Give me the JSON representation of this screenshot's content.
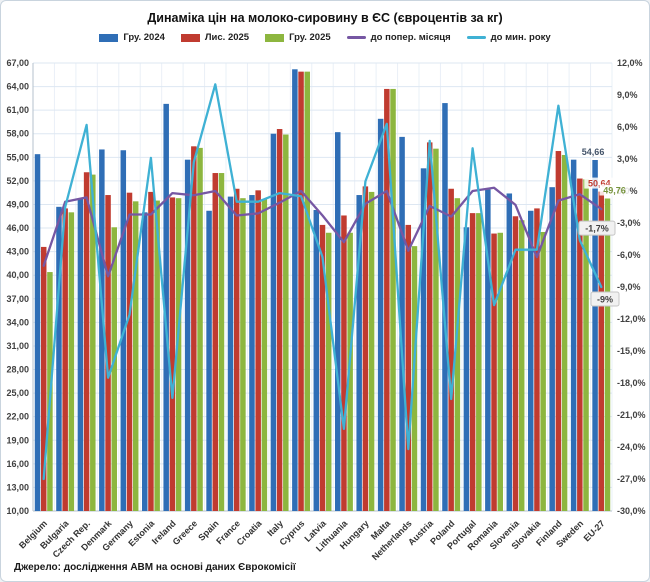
{
  "title": "Динаміка цін на молоко-сировину в ЄС (євроцентів за кг)",
  "source": "Джерело: дослідження АВМ на основі даних Єврокомісії",
  "colors": {
    "bar_dec2024": "#2F6EB6",
    "bar_nov2025": "#C03B30",
    "bar_dec2025": "#8DB63F",
    "line_month": "#7657A3",
    "line_year": "#3FB1D4",
    "axis_text": "#404040",
    "gridline": "#dde7f2",
    "gridline_vertical": "#eaf0f7",
    "axis_line": "#b5c2cd",
    "label_box_bg": "#f1f1f1",
    "label_box_border": "#c5c5c5"
  },
  "chart_data": {
    "type": "combo-bar-line",
    "title": "Динаміка цін на молоко-сировину в ЄС (євроцентів за кг)",
    "categories": [
      "Belgium",
      "Bulgaria",
      "Czech Rep.",
      "Denmark",
      "Germany",
      "Estonia",
      "Ireland",
      "Greece",
      "Spain",
      "France",
      "Croatia",
      "Italy",
      "Cyprus",
      "Latvia",
      "Lithuania",
      "Hungary",
      "Malta",
      "Netherlands",
      "Austria",
      "Poland",
      "Portugal",
      "Romania",
      "Slovenia",
      "Slovakia",
      "Finland",
      "Sweden",
      "EU-27"
    ],
    "series": [
      {
        "name": "Гру. 2024",
        "type": "bar",
        "axis": "left",
        "color": "#2F6EB6",
        "values": [
          55.4,
          48.7,
          49.7,
          56.0,
          55.9,
          48.0,
          61.8,
          54.7,
          48.2,
          50.0,
          50.2,
          58.0,
          66.2,
          48.3,
          58.2,
          50.2,
          59.9,
          57.6,
          53.6,
          61.9,
          46.1,
          50.9,
          50.4,
          48.2,
          51.2,
          54.7,
          54.66
        ]
      },
      {
        "name": "Лис. 2025",
        "type": "bar",
        "axis": "left",
        "color": "#C03B30",
        "values": [
          43.6,
          48.5,
          53.1,
          50.2,
          50.5,
          50.6,
          49.9,
          56.4,
          53.0,
          51.0,
          50.8,
          58.6,
          65.9,
          46.4,
          47.6,
          51.3,
          63.7,
          46.4,
          56.9,
          51.0,
          47.9,
          45.3,
          47.5,
          48.5,
          55.8,
          52.3,
          50.64
        ]
      },
      {
        "name": "Гру. 2025",
        "type": "bar",
        "axis": "left",
        "color": "#8DB63F",
        "values": [
          40.4,
          48.0,
          52.8,
          46.1,
          49.4,
          49.5,
          49.8,
          56.2,
          53.0,
          49.8,
          49.7,
          57.9,
          65.9,
          45.4,
          45.4,
          50.6,
          63.7,
          43.7,
          56.1,
          49.8,
          47.9,
          45.4,
          47.0,
          45.5,
          55.3,
          52.2,
          49.76
        ]
      },
      {
        "name": "до попер. місяця",
        "type": "line",
        "axis": "right",
        "color": "#7657A3",
        "values": [
          -7.0,
          -1.0,
          -0.6,
          -8.0,
          -2.2,
          -2.2,
          -0.2,
          -0.4,
          0.0,
          -2.3,
          -2.1,
          -1.1,
          0.0,
          -2.3,
          -4.8,
          -1.2,
          0.0,
          -5.6,
          -1.4,
          -2.4,
          0.0,
          0.3,
          -1.3,
          -6.2,
          -0.9,
          -0.3,
          -1.7
        ]
      },
      {
        "name": "до мин. року",
        "type": "line",
        "axis": "right",
        "color": "#3FB1D4",
        "values": [
          -27.0,
          -1.5,
          6.2,
          -17.5,
          -11.6,
          3.1,
          -19.4,
          2.7,
          10.0,
          -1.0,
          -1.0,
          -0.2,
          -0.5,
          -6.2,
          -22.3,
          0.9,
          6.3,
          -24.2,
          4.7,
          -19.5,
          4.0,
          -10.7,
          -5.5,
          -5.5,
          8.0,
          -4.6,
          -9.0
        ]
      }
    ],
    "left_axis": {
      "min": 10,
      "max": 67,
      "step": 3,
      "tick_format": "##,00"
    },
    "right_axis": {
      "min": -30,
      "max": 12,
      "step": 3,
      "tick_format": "##,0%"
    },
    "grid": true,
    "legend_position": "top",
    "data_labels": [
      {
        "series": 0,
        "category": "EU-27",
        "text": "54,66",
        "color": "#44546A",
        "boxed": false
      },
      {
        "series": 1,
        "category": "EU-27",
        "text": "50,64",
        "color": "#C03B30",
        "boxed": false
      },
      {
        "series": 2,
        "category": "EU-27",
        "text": "49,76",
        "color": "#76933C",
        "boxed": false
      },
      {
        "series": 3,
        "category": "EU-27",
        "text": "-1,7%",
        "color": "#3f3f3f",
        "boxed": true
      },
      {
        "series": 4,
        "category": "EU-27",
        "text": "-9%",
        "color": "#3f3f3f",
        "boxed": true
      }
    ]
  }
}
